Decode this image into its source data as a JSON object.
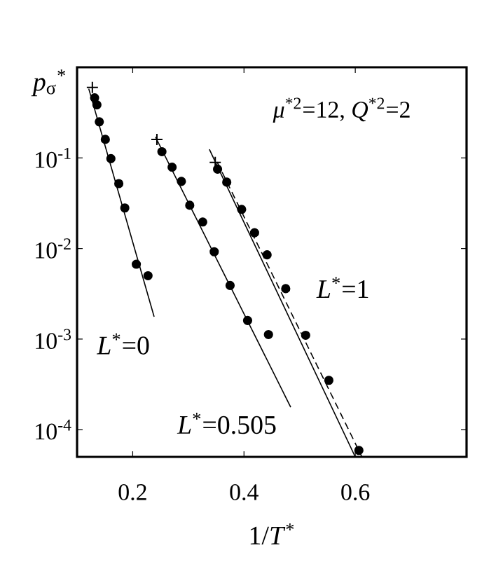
{
  "chart_data": {
    "type": "scatter",
    "xlabel": "1/*T*$^{*}$",
    "ylabel": "*p*$_{σ}$$^{*}$",
    "log": "y",
    "xlim": [
      0.1,
      0.8
    ],
    "xticks": [
      0.2,
      0.4,
      0.6
    ],
    "ylim": [
      5e-05,
      1
    ],
    "yticks": [
      {
        "value": 0.1,
        "label": "10$^{-1}$"
      },
      {
        "value": 0.01,
        "label": "10$^{-2}$"
      },
      {
        "value": 0.001,
        "label": "10$^{-3}$"
      },
      {
        "value": 0.0001,
        "label": "10$^{-4}$"
      }
    ],
    "grid": false,
    "series": [
      {
        "marker": "circle",
        "color": "#000000",
        "x": [
          0.1315,
          0.1357,
          0.14,
          0.1508,
          0.1608,
          0.175,
          0.1858,
          0.2065,
          0.2275
        ],
        "values": [
          0.46,
          0.385,
          0.25,
          0.16,
          0.098,
          0.052,
          0.028,
          0.0067,
          0.005
        ]
      },
      {
        "marker": "circle",
        "color": "#000000",
        "x": [
          0.2525,
          0.2708,
          0.2875,
          0.3025,
          0.3258,
          0.3465,
          0.375,
          0.4065,
          0.444
        ],
        "values": [
          0.117,
          0.079,
          0.055,
          0.03,
          0.0196,
          0.0092,
          0.0039,
          0.0016,
          0.00112
        ]
      },
      {
        "marker": "circle",
        "color": "#000000",
        "x": [
          0.3525,
          0.369,
          0.3958,
          0.419,
          0.4415,
          0.475,
          0.5108,
          0.5525,
          0.6065
        ],
        "values": [
          0.075,
          0.054,
          0.027,
          0.0149,
          0.0085,
          0.0036,
          0.0011,
          0.00035,
          5.9e-05
        ]
      },
      {
        "marker": "cross",
        "color": "#000000",
        "x": [
          0.1275,
          0.2435,
          0.3483
        ],
        "values": [
          0.6,
          0.16,
          0.089
        ]
      },
      {
        "type": "line",
        "marker": "none",
        "line_style": "solid",
        "color": "#000000",
        "x": [
          0.121,
          0.2385
        ],
        "values": [
          0.58,
          0.00176
        ]
      },
      {
        "type": "line",
        "marker": "none",
        "line_style": "solid",
        "color": "#000000",
        "x": [
          0.241,
          0.484
        ],
        "values": [
          0.17,
          0.000177
        ]
      },
      {
        "type": "line",
        "marker": "none",
        "line_style": "solid",
        "color": "#000000",
        "x": [
          0.3378,
          0.6
        ],
        "values": [
          0.124,
          5e-05
        ]
      },
      {
        "type": "line",
        "marker": "none",
        "line_style": "dashed",
        "color": "#000000",
        "x": [
          0.3517,
          0.612
        ],
        "values": [
          0.09,
          5e-05
        ]
      }
    ],
    "annotations": [
      "*μ*$^{*2}$=12, *Q*$^{*2}$=2",
      "*L*$^{*}$=0",
      "*L*$^{*}$=0.505",
      "*L*$^{*}$=1"
    ]
  }
}
